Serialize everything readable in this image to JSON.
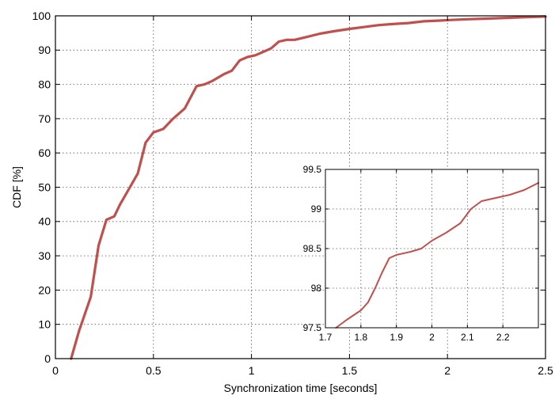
{
  "chart_data": [
    {
      "type": "line",
      "title": "",
      "xlabel": "Synchronization time [seconds]",
      "ylabel": "CDF [%]",
      "xlim": [
        0,
        2.5
      ],
      "ylim": [
        0,
        100
      ],
      "xticks": [
        0,
        0.5,
        1,
        1.5,
        2,
        2.5
      ],
      "xtick_labels": [
        "0",
        "0.5",
        "1",
        "1.5",
        "2",
        "2.5"
      ],
      "yticks": [
        0,
        10,
        20,
        30,
        40,
        50,
        60,
        70,
        80,
        90,
        100
      ],
      "ytick_labels": [
        "0",
        "10",
        "20",
        "30",
        "40",
        "50",
        "60",
        "70",
        "80",
        "90",
        "100"
      ],
      "grid": true,
      "line_color": "#c0504d",
      "series": [
        {
          "x": [
            0.08,
            0.12,
            0.18,
            0.22,
            0.26,
            0.3,
            0.33,
            0.38,
            0.42,
            0.46,
            0.5,
            0.55,
            0.6,
            0.66,
            0.72,
            0.76,
            0.8,
            0.86,
            0.9,
            0.94,
            0.98,
            1.02,
            1.06,
            1.1,
            1.14,
            1.18,
            1.22,
            1.28,
            1.35,
            1.42,
            1.5,
            1.58,
            1.65,
            1.72,
            1.8,
            1.88,
            1.95,
            2.02,
            2.1,
            2.2,
            2.3,
            2.4,
            2.5
          ],
          "y": [
            0,
            8,
            18,
            33,
            40.5,
            41.5,
            45,
            50,
            54,
            63,
            66,
            67,
            70,
            73,
            79.5,
            80,
            81,
            83,
            84,
            87,
            88,
            88.5,
            89.5,
            90.5,
            92.5,
            93,
            93,
            93.8,
            94.8,
            95.5,
            96.2,
            96.8,
            97.3,
            97.6,
            97.9,
            98.4,
            98.6,
            98.8,
            99.0,
            99.2,
            99.4,
            99.6,
            99.8
          ]
        }
      ]
    },
    {
      "type": "line",
      "title": "",
      "xlabel": "",
      "ylabel": "",
      "xlim": [
        1.7,
        2.3
      ],
      "ylim": [
        97.5,
        99.5
      ],
      "xticks": [
        1.7,
        1.8,
        1.9,
        2.0,
        2.1,
        2.2
      ],
      "xtick_labels": [
        "1.7",
        "1.8",
        "1.9",
        "2",
        "2.1",
        "2.2"
      ],
      "yticks": [
        97.5,
        98,
        98.5,
        99,
        99.5
      ],
      "ytick_labels": [
        "97.5",
        "98",
        "98.5",
        "99",
        "99.5"
      ],
      "grid": true,
      "line_color": "#c0504d",
      "series": [
        {
          "x": [
            1.73,
            1.76,
            1.8,
            1.82,
            1.84,
            1.86,
            1.88,
            1.9,
            1.94,
            1.97,
            2.0,
            2.04,
            2.08,
            2.11,
            2.14,
            2.18,
            2.22,
            2.26,
            2.3
          ],
          "y": [
            97.5,
            97.6,
            97.72,
            97.82,
            98.0,
            98.2,
            98.38,
            98.42,
            98.46,
            98.5,
            98.6,
            98.7,
            98.82,
            99.0,
            99.1,
            99.14,
            99.18,
            99.24,
            99.33
          ]
        }
      ]
    }
  ]
}
